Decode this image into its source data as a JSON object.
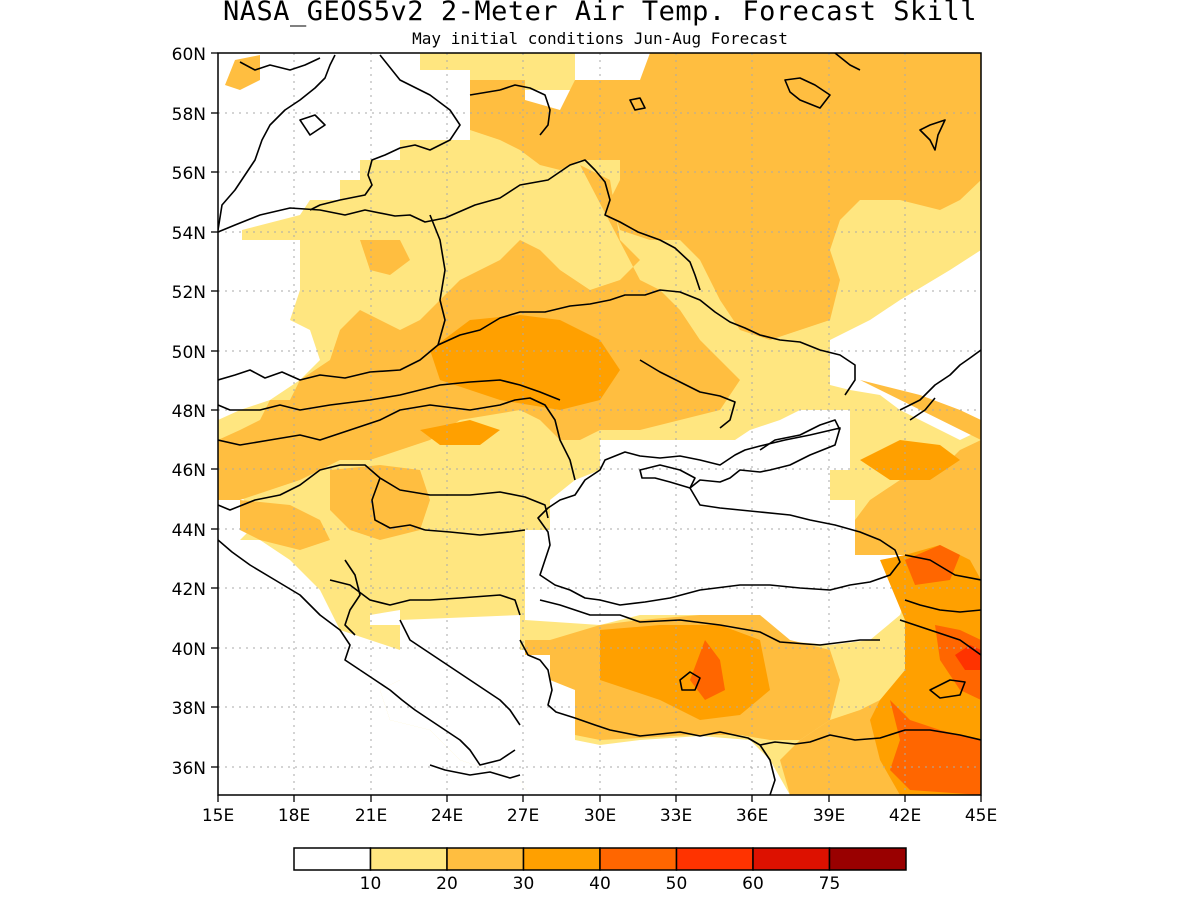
{
  "title": "NASA_GEOS5v2 2-Meter Air Temp. Forecast Skill",
  "subtitle": "May initial conditions  Jun-Aug Forecast",
  "lat_labels": [
    "60N",
    "58N",
    "56N",
    "54N",
    "52N",
    "50N",
    "48N",
    "46N",
    "44N",
    "42N",
    "40N",
    "38N",
    "36N"
  ],
  "lon_labels": [
    "15E",
    "18E",
    "21E",
    "24E",
    "27E",
    "30E",
    "33E",
    "36E",
    "39E",
    "42E",
    "45E"
  ],
  "legend": {
    "colors": [
      "#ffffff",
      "#ffe680",
      "#ffbe40",
      "#ffa000",
      "#ff6600",
      "#ff3300",
      "#dd1100",
      "#990000"
    ],
    "labels": [
      "10",
      "20",
      "30",
      "40",
      "50",
      "60",
      "75"
    ]
  },
  "colors": {
    "c10": "#ffe680",
    "c20": "#ffbe40",
    "c30": "#ffa000",
    "c40": "#ff6600",
    "c50": "#ff3300",
    "coast": "#000000",
    "grid": "#aaaaaa"
  }
}
